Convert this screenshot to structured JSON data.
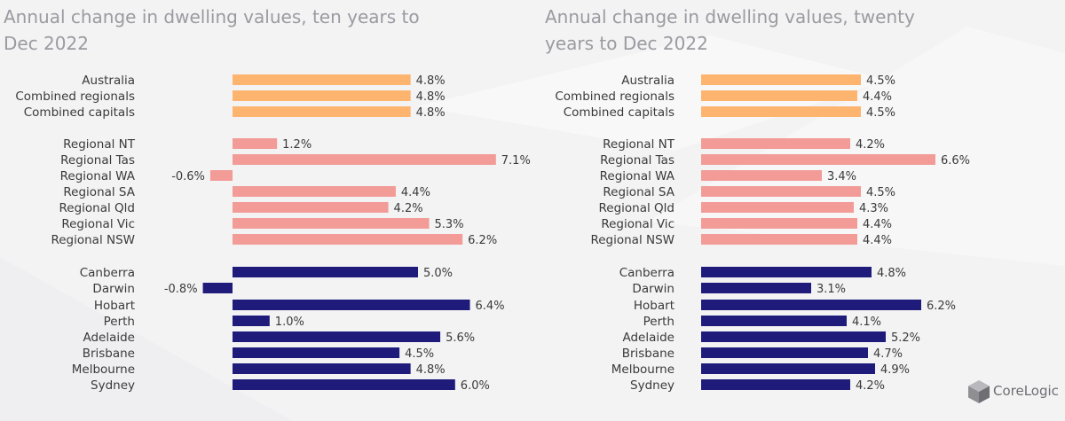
{
  "colors": {
    "aggregate": "#fdb46e",
    "regional": "#f29b97",
    "capital": "#1e1b7b"
  },
  "brand": {
    "name": "CoreLogic",
    "icon": "cube-logo-icon"
  },
  "chart_data": [
    {
      "type": "bar",
      "orientation": "horizontal",
      "title": "Annual change in dwelling values, ten years to Dec 2022",
      "categories": [
        "Australia",
        "Combined regionals",
        "Combined capitals",
        "Regional NT",
        "Regional Tas",
        "Regional WA",
        "Regional SA",
        "Regional Qld",
        "Regional Vic",
        "Regional NSW",
        "Canberra",
        "Darwin",
        "Hobart",
        "Perth",
        "Adelaide",
        "Brisbane",
        "Melbourne",
        "Sydney"
      ],
      "groups": [
        "aggregate",
        "aggregate",
        "aggregate",
        "regional",
        "regional",
        "regional",
        "regional",
        "regional",
        "regional",
        "regional",
        "capital",
        "capital",
        "capital",
        "capital",
        "capital",
        "capital",
        "capital",
        "capital"
      ],
      "values": [
        4.8,
        4.8,
        4.8,
        1.2,
        7.1,
        -0.6,
        4.4,
        4.2,
        5.3,
        6.2,
        5.0,
        -0.8,
        6.4,
        1.0,
        5.6,
        4.5,
        4.8,
        6.0
      ],
      "labels": [
        "4.8%",
        "4.8%",
        "4.8%",
        "1.2%",
        "7.1%",
        "-0.6%",
        "4.4%",
        "4.2%",
        "5.3%",
        "6.2%",
        "5.0%",
        "-0.8%",
        "6.4%",
        "1.0%",
        "5.6%",
        "4.5%",
        "4.8%",
        "6.0%"
      ],
      "unit": "%"
    },
    {
      "type": "bar",
      "orientation": "horizontal",
      "title": "Annual change in dwelling values, twenty years to Dec 2022",
      "categories": [
        "Australia",
        "Combined regionals",
        "Combined capitals",
        "Regional NT",
        "Regional Tas",
        "Regional WA",
        "Regional SA",
        "Regional Qld",
        "Regional Vic",
        "Regional NSW",
        "Canberra",
        "Darwin",
        "Hobart",
        "Perth",
        "Adelaide",
        "Brisbane",
        "Melbourne",
        "Sydney"
      ],
      "groups": [
        "aggregate",
        "aggregate",
        "aggregate",
        "regional",
        "regional",
        "regional",
        "regional",
        "regional",
        "regional",
        "regional",
        "capital",
        "capital",
        "capital",
        "capital",
        "capital",
        "capital",
        "capital",
        "capital"
      ],
      "values": [
        4.5,
        4.4,
        4.5,
        4.2,
        6.6,
        3.4,
        4.5,
        4.3,
        4.4,
        4.4,
        4.8,
        3.1,
        6.2,
        4.1,
        5.2,
        4.7,
        4.9,
        4.2
      ],
      "labels": [
        "4.5%",
        "4.4%",
        "4.5%",
        "4.2%",
        "6.6%",
        "3.4%",
        "4.5%",
        "4.3%",
        "4.4%",
        "4.4%",
        "4.8%",
        "3.1%",
        "6.2%",
        "4.1%",
        "5.2%",
        "4.7%",
        "4.9%",
        "4.2%"
      ],
      "unit": "%"
    }
  ]
}
